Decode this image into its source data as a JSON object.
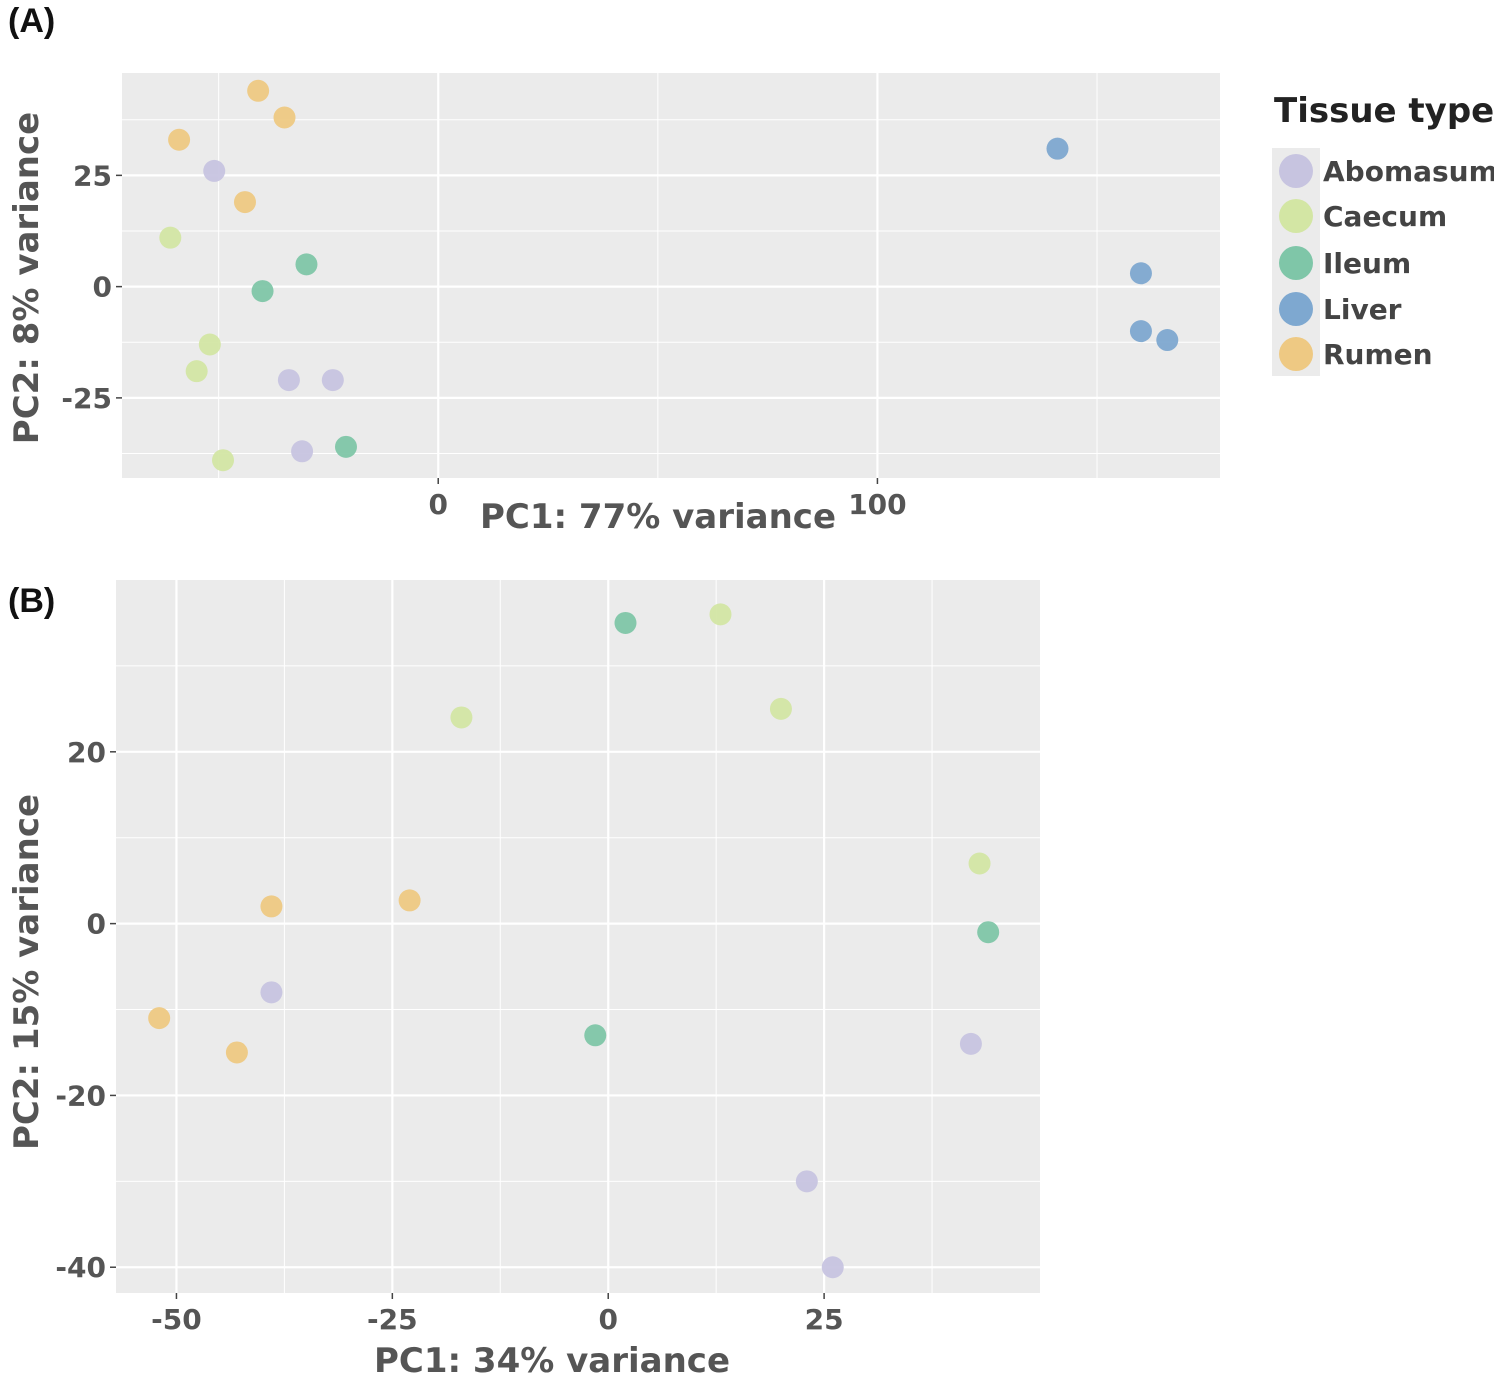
{
  "chart_data": [
    {
      "panel": "(A)",
      "type": "scatter",
      "xlabel": "PC1: 77% variance",
      "ylabel": "PC2: 8% variance",
      "xticks": [
        0,
        100
      ],
      "yticks": [
        25,
        0,
        -25
      ],
      "xlim": [
        -72,
        178
      ],
      "ylim": [
        -43,
        48
      ],
      "grid": true,
      "legend": {
        "title": "Tissue type",
        "position": "right",
        "entries": [
          "Abomasum",
          "Caecum",
          "Ileum",
          "Liver",
          "Rumen"
        ]
      },
      "series": [
        {
          "name": "Abomasum",
          "points": [
            [
              -51,
              26
            ],
            [
              -34,
              -21
            ],
            [
              -24,
              -21
            ],
            [
              -31,
              -37
            ]
          ]
        },
        {
          "name": "Caecum",
          "points": [
            [
              -61,
              11
            ],
            [
              -52,
              -13
            ],
            [
              -55,
              -19
            ],
            [
              -49,
              -39
            ]
          ]
        },
        {
          "name": "Ileum",
          "points": [
            [
              -30,
              5
            ],
            [
              -40,
              -1
            ],
            [
              -21,
              -36
            ]
          ]
        },
        {
          "name": "Liver",
          "points": [
            [
              141,
              31
            ],
            [
              160,
              3
            ],
            [
              160,
              -10
            ],
            [
              166,
              -12
            ]
          ]
        },
        {
          "name": "Rumen",
          "points": [
            [
              -41,
              44
            ],
            [
              -35,
              38
            ],
            [
              -59,
              33
            ],
            [
              -44,
              19
            ]
          ]
        }
      ]
    },
    {
      "panel": "(B)",
      "type": "scatter",
      "xlabel": "PC1: 34% variance",
      "ylabel": "PC2: 15% variance",
      "xticks": [
        -50,
        -25,
        0,
        25
      ],
      "yticks": [
        20,
        0,
        -20,
        -40
      ],
      "xlim": [
        -57,
        50
      ],
      "ylim": [
        -43,
        40
      ],
      "grid": true,
      "series": [
        {
          "name": "Abomasum",
          "points": [
            [
              -39,
              -8
            ],
            [
              42,
              -14
            ],
            [
              23,
              -30
            ],
            [
              26,
              -40
            ]
          ]
        },
        {
          "name": "Caecum",
          "points": [
            [
              -17,
              24
            ],
            [
              13,
              36
            ],
            [
              20,
              25
            ],
            [
              43,
              7
            ]
          ]
        },
        {
          "name": "Ileum",
          "points": [
            [
              2,
              35
            ],
            [
              -1.5,
              -13
            ],
            [
              44,
              -1
            ]
          ]
        },
        {
          "name": "Rumen",
          "points": [
            [
              -39,
              2
            ],
            [
              -23,
              2.7
            ],
            [
              -52,
              -11
            ],
            [
              -43,
              -15
            ]
          ]
        }
      ]
    }
  ],
  "colors": {
    "Abomasum": "#c7c4e0",
    "Caecum": "#d3e6a4",
    "Ileum": "#7fc6a8",
    "Liver": "#7ea8d0",
    "Rumen": "#eec983",
    "panel_bg": "#ebebeb",
    "grid": "#ffffff"
  }
}
